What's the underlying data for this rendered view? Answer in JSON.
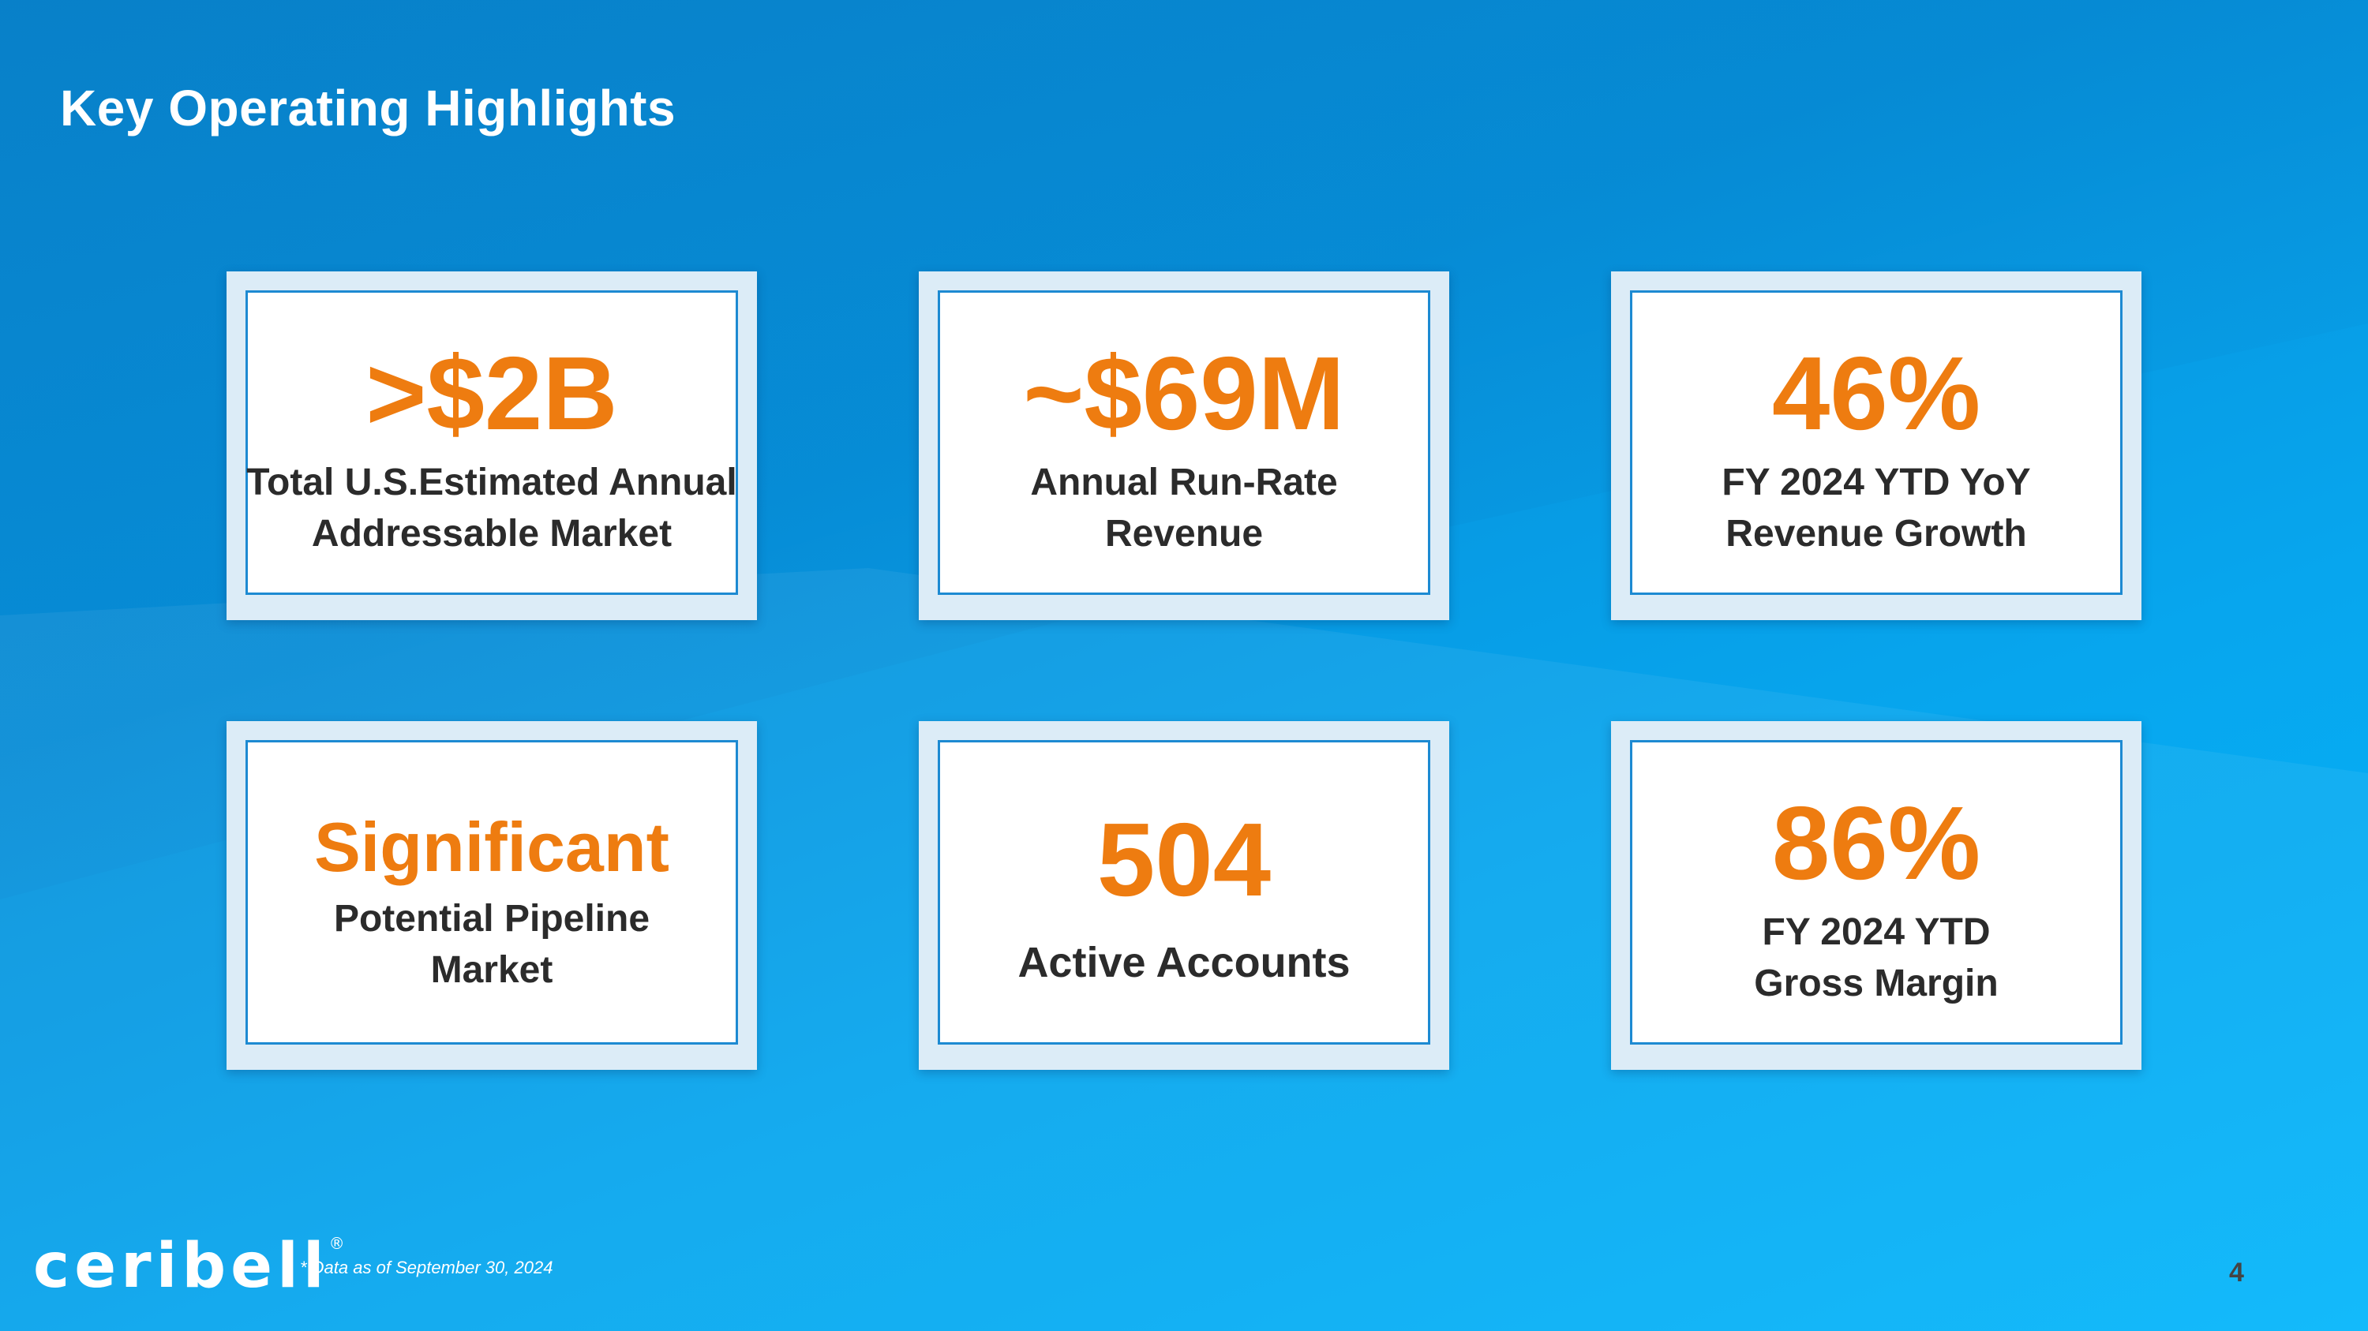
{
  "slide": {
    "title": "Key Operating Highlights",
    "page_number": "4",
    "footnote": "* Data as of September 30, 2024"
  },
  "brand": {
    "logo_text": "ceribell",
    "logo_mark": "®",
    "accent_color": "#ee7c10",
    "background_color": "#0a97e3"
  },
  "cards": [
    {
      "value": ">$2B",
      "label_line1": "Total U.S.Estimated Annual",
      "label_line2": "Addressable Market"
    },
    {
      "value": "~$69M",
      "label_line1": "Annual Run-Rate",
      "label_line2": "Revenue"
    },
    {
      "value": "46%",
      "label_line1": "FY 2024 YTD YoY",
      "label_line2": "Revenue Growth"
    },
    {
      "value": "Significant",
      "label_line1": "Potential Pipeline",
      "label_line2": "Market"
    },
    {
      "value": "504",
      "label_line1": "Active Accounts"
    },
    {
      "value": "86%",
      "label_line1": "FY 2024 YTD",
      "label_line2": "Gross Margin"
    }
  ]
}
